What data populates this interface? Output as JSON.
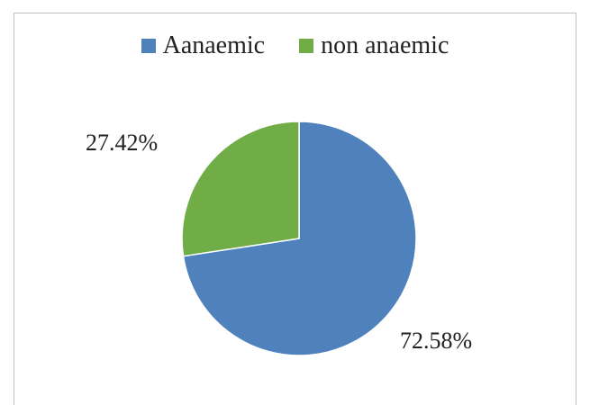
{
  "chart_data": {
    "type": "pie",
    "title": "",
    "slices": [
      {
        "label": "Aanaemic",
        "value": 72.58,
        "display": "72.58%",
        "color": "#4f81bd"
      },
      {
        "label": "non anaemic",
        "value": 27.42,
        "display": "27.42%",
        "color": "#70ad47"
      }
    ],
    "legend_position": "top"
  }
}
